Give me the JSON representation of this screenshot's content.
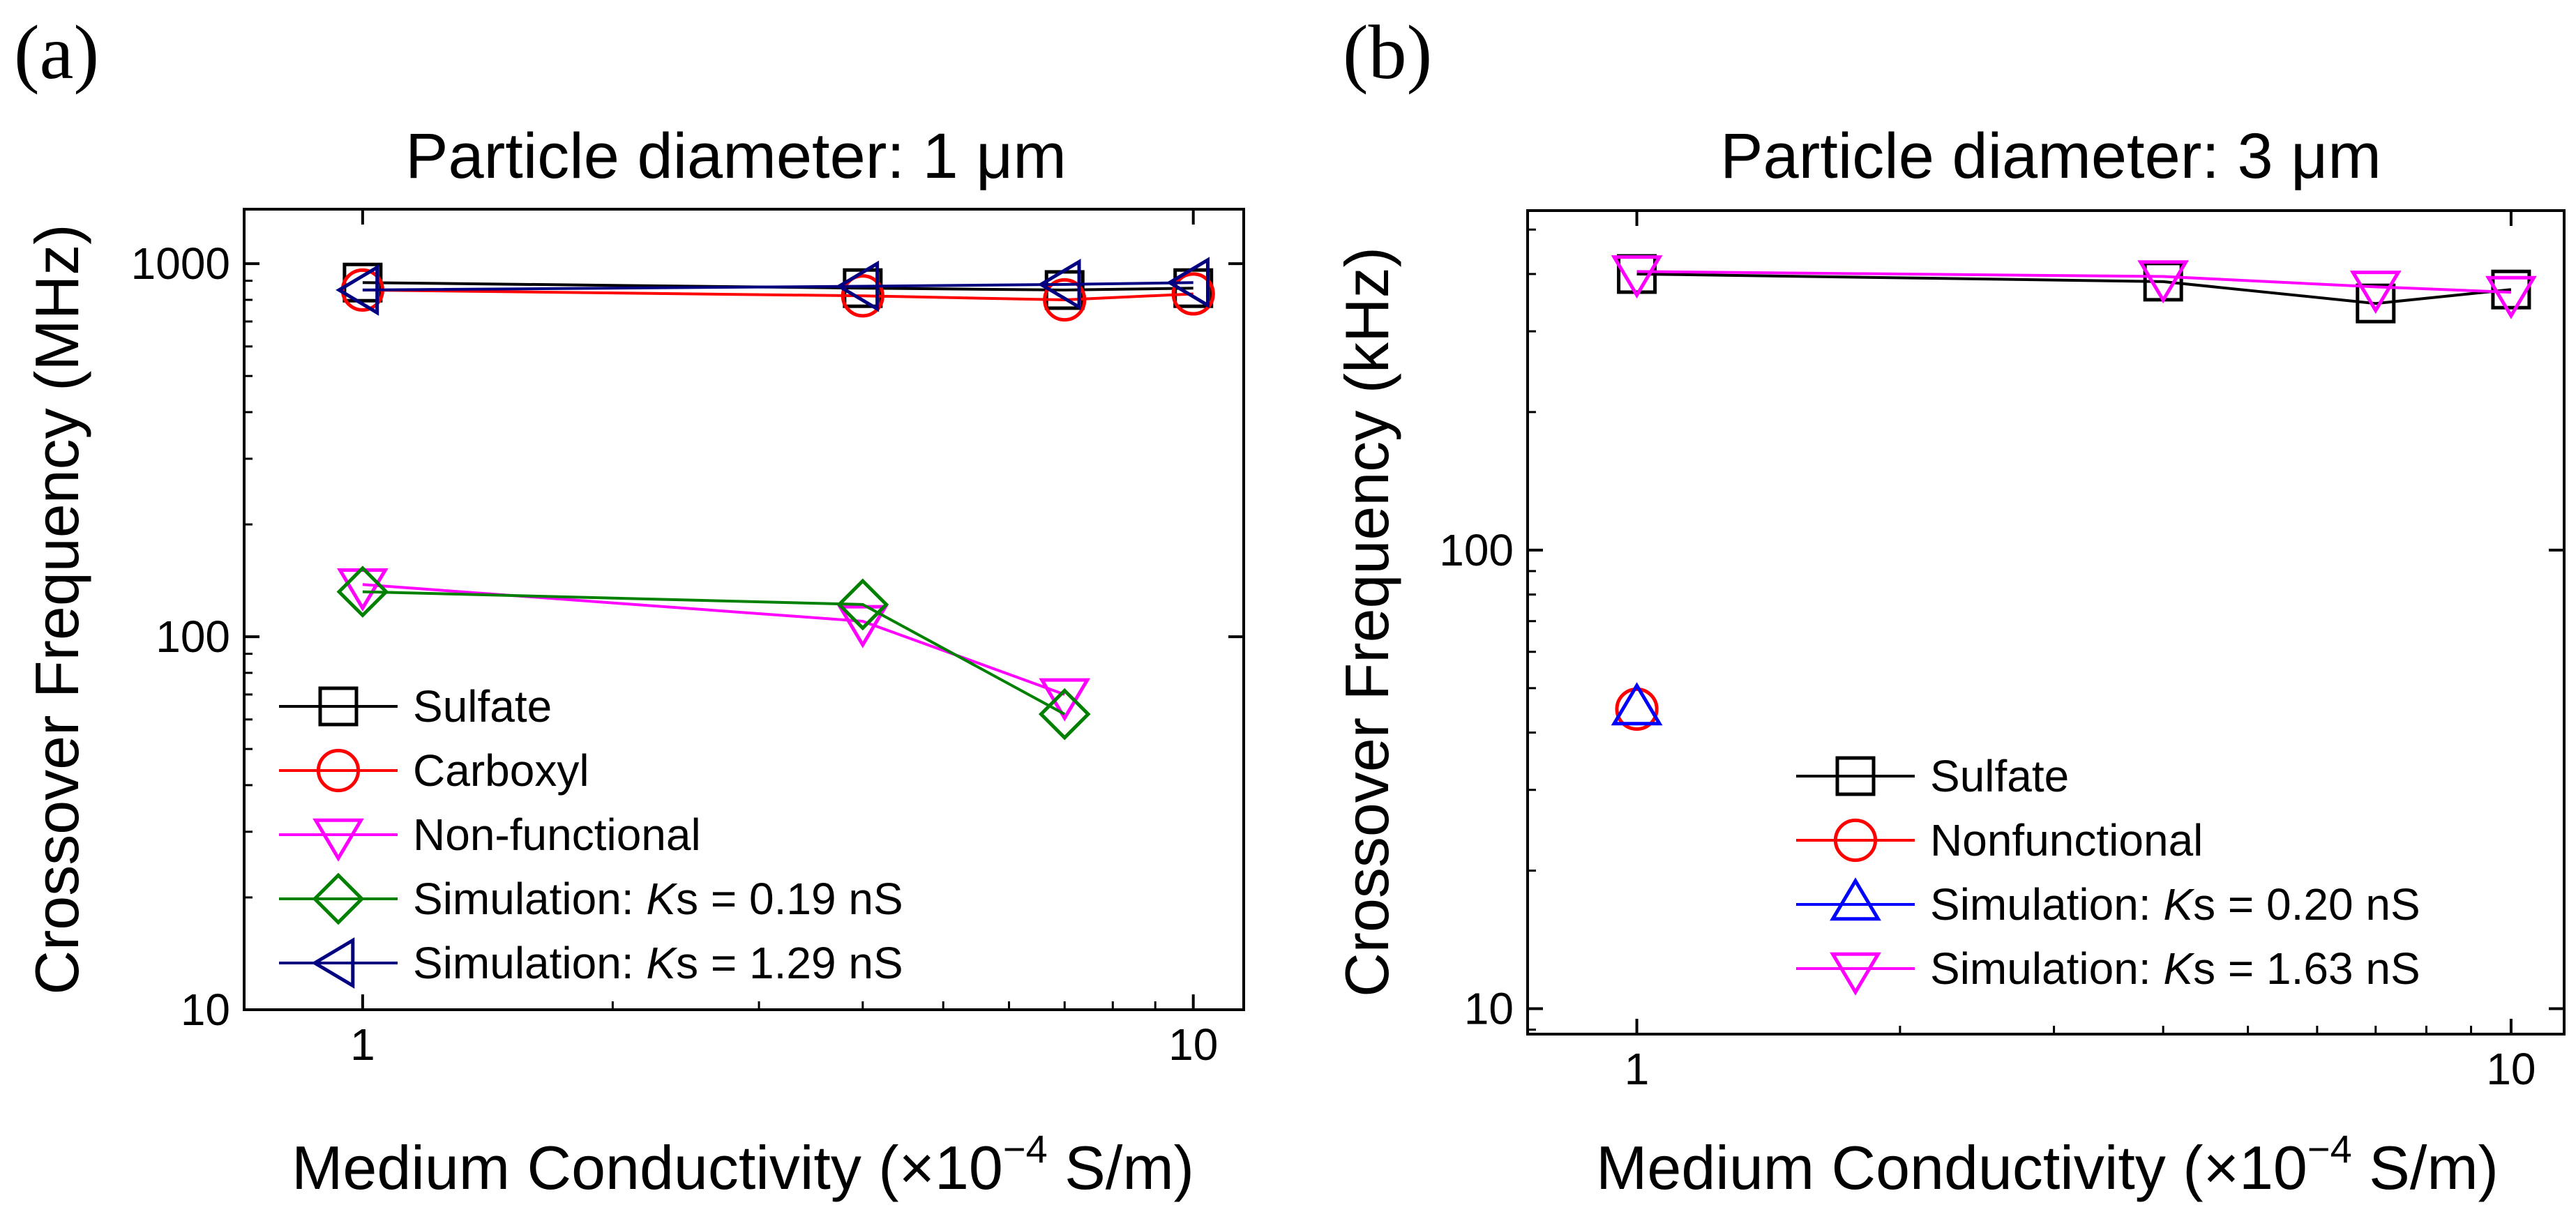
{
  "chart_data": [
    {
      "panel_label": "(a)",
      "type": "line",
      "title": "Particle diameter: 1 μm",
      "xlabel": "Medium Conductivity (×10",
      "xlabel_sup": "−4",
      "xlabel_tail": " S/m)",
      "ylabel": "Crossover Frequency (MHz)",
      "xscale": "log",
      "yscale": "log",
      "xlim": [
        0.72,
        11.5
      ],
      "ylim": [
        10,
        1400
      ],
      "xticks": [
        1,
        10
      ],
      "xtick_labels": [
        "1",
        "10"
      ],
      "yticks": [
        10,
        100,
        1000
      ],
      "ytick_labels": [
        "10",
        "100",
        "1000"
      ],
      "legend_position": "bottom-left",
      "series": [
        {
          "name": "Sulfate",
          "label_pre": "Sulfate",
          "label_italic": "",
          "label_post": "",
          "color": "#000000",
          "marker": "square",
          "x": [
            1,
            4,
            7,
            10
          ],
          "y": [
            890,
            860,
            850,
            860
          ]
        },
        {
          "name": "Carboxyl",
          "label_pre": "Carboxyl",
          "label_italic": "",
          "label_post": "",
          "color": "#ff0000",
          "marker": "circle",
          "x": [
            1,
            4,
            7,
            10
          ],
          "y": [
            850,
            820,
            800,
            830
          ]
        },
        {
          "name": "Non-functional",
          "label_pre": "Non-functional",
          "label_italic": "",
          "label_post": "",
          "color": "#ff00ff",
          "marker": "triangle-down",
          "x": [
            1,
            4,
            7
          ],
          "y": [
            138,
            110,
            70
          ]
        },
        {
          "name": "Simulation: Ks = 0.19 nS",
          "label_pre": "Simulation: ",
          "label_italic": "K",
          "label_post": "s = 0.19 nS",
          "color": "#008000",
          "marker": "diamond",
          "x": [
            1,
            4,
            7
          ],
          "y": [
            132,
            122,
            62
          ]
        },
        {
          "name": "Simulation: Ks = 1.29 nS",
          "label_pre": "Simulation: ",
          "label_italic": "K",
          "label_post": "s = 1.29 nS",
          "color": "#000080",
          "marker": "triangle-left",
          "x": [
            1,
            4,
            7,
            10
          ],
          "y": [
            850,
            870,
            880,
            890
          ]
        }
      ]
    },
    {
      "panel_label": "(b)",
      "type": "line",
      "title": "Particle diameter: 3 μm",
      "xlabel": "Medium Conductivity (×10",
      "xlabel_sup": "−4",
      "xlabel_tail": " S/m)",
      "ylabel": "Crossover Frequency (kHz)",
      "xscale": "log",
      "yscale": "log",
      "xlim": [
        0.75,
        11.5
      ],
      "ylim": [
        8.8,
        550
      ],
      "xticks": [
        1,
        10
      ],
      "xtick_labels": [
        "1",
        "10"
      ],
      "yticks": [
        10,
        100
      ],
      "ytick_labels": [
        "10",
        "100"
      ],
      "legend_position": "bottom-right",
      "series": [
        {
          "name": "Sulfate",
          "label_pre": "Sulfate",
          "label_italic": "",
          "label_post": "",
          "color": "#000000",
          "marker": "square",
          "x": [
            1,
            4,
            7,
            10
          ],
          "y": [
            400,
            385,
            345,
            370
          ]
        },
        {
          "name": "Nonfunctional",
          "label_pre": "Nonfunctional",
          "label_italic": "",
          "label_post": "",
          "color": "#ff0000",
          "marker": "circle",
          "x": [
            1
          ],
          "y": [
            45
          ]
        },
        {
          "name": "Simulation: Ks = 0.20 nS",
          "label_pre": "Simulation: ",
          "label_italic": "K",
          "label_post": "s = 0.20 nS",
          "color": "#0000ff",
          "marker": "triangle-up",
          "x": [
            1
          ],
          "y": [
            45
          ]
        },
        {
          "name": "Simulation: Ks = 1.63 nS",
          "label_pre": "Simulation: ",
          "label_italic": "K",
          "label_post": "s = 1.63 nS",
          "color": "#ff00ff",
          "marker": "triangle-down",
          "x": [
            1,
            4,
            7,
            10
          ],
          "y": [
            405,
            395,
            375,
            365
          ]
        }
      ]
    }
  ]
}
